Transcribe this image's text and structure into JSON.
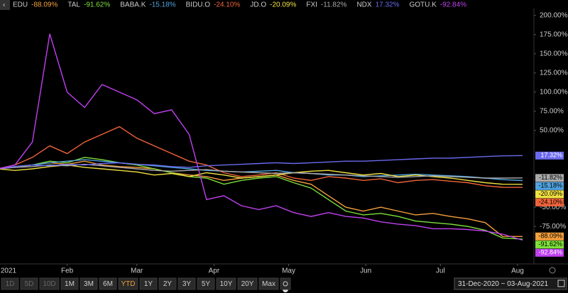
{
  "chart_data": {
    "type": "line",
    "x": [
      4,
      11,
      18,
      25,
      32,
      39,
      46,
      53,
      60,
      67,
      74,
      81,
      88,
      95,
      102,
      109,
      116,
      123,
      130,
      137,
      144,
      151,
      158,
      165,
      172,
      179,
      186,
      193,
      200,
      207,
      215
    ],
    "xlim": [
      5,
      219
    ],
    "xticks": [
      {
        "value": 1,
        "label": "2021"
      },
      {
        "value": 32,
        "label": "Feb"
      },
      {
        "value": 60,
        "label": "Mar"
      },
      {
        "value": 91,
        "label": "Apr"
      },
      {
        "value": 121,
        "label": "May"
      },
      {
        "value": 152,
        "label": "Jun"
      },
      {
        "value": 182,
        "label": "Jul"
      },
      {
        "value": 213,
        "label": "Aug"
      }
    ],
    "ylim": [
      -122,
      209
    ],
    "yticks": [
      {
        "value": 200,
        "label": "200.00%"
      },
      {
        "value": 175,
        "label": "175.00%"
      },
      {
        "value": 150,
        "label": "150.00%"
      },
      {
        "value": 125,
        "label": "125.00%"
      },
      {
        "value": 100,
        "label": "100.00%"
      },
      {
        "value": 75,
        "label": "75.00%"
      },
      {
        "value": 50,
        "label": "50.00%"
      },
      {
        "value": -50,
        "label": "-50.00%"
      },
      {
        "value": -75,
        "label": "-75.00%"
      }
    ],
    "grid": false,
    "legend": "top",
    "series": [
      {
        "name": "EDU",
        "color": "#f5a03c",
        "values": [
          0,
          2,
          5,
          8,
          6,
          10,
          5,
          3,
          2,
          0,
          -5,
          -8,
          -10,
          -15,
          -12,
          -10,
          -8,
          -15,
          -20,
          -35,
          -50,
          -55,
          -50,
          -55,
          -60,
          -58,
          -62,
          -65,
          -70,
          -88,
          -88.09
        ],
        "value_labels": [
          null,
          null,
          null,
          null,
          null,
          null,
          null,
          null,
          null,
          null,
          null,
          null,
          null,
          null,
          null,
          null,
          null,
          null,
          null,
          null,
          null,
          null,
          null,
          null,
          null,
          null,
          null,
          null,
          null,
          null,
          "-88.09%"
        ]
      },
      {
        "name": "TAL",
        "color": "#7de03a",
        "values": [
          0,
          3,
          5,
          10,
          8,
          15,
          12,
          8,
          5,
          0,
          -5,
          -10,
          -12,
          -20,
          -15,
          -12,
          -10,
          -18,
          -25,
          -40,
          -55,
          -60,
          -58,
          -62,
          -68,
          -70,
          -72,
          -75,
          -80,
          -90,
          -91.62
        ],
        "value_labels": [
          null,
          null,
          null,
          null,
          null,
          null,
          null,
          null,
          null,
          null,
          null,
          null,
          null,
          null,
          null,
          null,
          null,
          null,
          null,
          null,
          null,
          null,
          null,
          null,
          null,
          null,
          null,
          null,
          null,
          null,
          "-91.62%"
        ]
      },
      {
        "name": "BABA.K",
        "color": "#4fa3e0",
        "values": [
          0,
          3,
          5,
          8,
          10,
          12,
          10,
          8,
          6,
          4,
          2,
          0,
          -2,
          -3,
          -4,
          -3,
          -2,
          -5,
          -6,
          -8,
          -8,
          -10,
          -9,
          -8,
          -7,
          -8,
          -9,
          -10,
          -12,
          -14,
          -15.18
        ],
        "value_labels": [
          null,
          null,
          null,
          null,
          null,
          null,
          null,
          null,
          null,
          null,
          null,
          null,
          null,
          null,
          null,
          null,
          null,
          null,
          null,
          null,
          null,
          null,
          null,
          null,
          null,
          null,
          null,
          null,
          null,
          null,
          "-15.18%"
        ]
      },
      {
        "name": "BIDU.O",
        "color": "#f0643a",
        "values": [
          0,
          5,
          15,
          30,
          20,
          35,
          45,
          55,
          40,
          30,
          20,
          10,
          5,
          -5,
          -10,
          -8,
          -5,
          -12,
          -15,
          -10,
          -12,
          -15,
          -13,
          -18,
          -15,
          -14,
          -16,
          -18,
          -22,
          -24,
          -24.1
        ],
        "value_labels": [
          null,
          null,
          null,
          null,
          null,
          null,
          null,
          null,
          null,
          null,
          null,
          null,
          null,
          null,
          null,
          null,
          null,
          null,
          null,
          null,
          null,
          null,
          null,
          null,
          null,
          null,
          null,
          null,
          null,
          null,
          "-24.10%"
        ]
      },
      {
        "name": "JD.O",
        "color": "#f0e040",
        "values": [
          0,
          -2,
          0,
          3,
          5,
          2,
          0,
          -2,
          -4,
          -8,
          -6,
          -10,
          -5,
          -8,
          -12,
          -10,
          -8,
          -5,
          -3,
          -2,
          -5,
          -8,
          -6,
          -10,
          -8,
          -10,
          -12,
          -15,
          -18,
          -20,
          -20.09
        ],
        "value_labels": [
          null,
          null,
          null,
          null,
          null,
          null,
          null,
          null,
          null,
          null,
          null,
          null,
          null,
          null,
          null,
          null,
          null,
          null,
          null,
          null,
          null,
          null,
          null,
          null,
          null,
          null,
          null,
          null,
          null,
          null,
          "-20.09%"
        ]
      },
      {
        "name": "FXI",
        "color": "#aaaaaa",
        "values": [
          0,
          2,
          3,
          5,
          4,
          6,
          4,
          2,
          0,
          -2,
          -3,
          -2,
          -1,
          -3,
          -4,
          -5,
          -6,
          -5,
          -6,
          -7,
          -8,
          -9,
          -10,
          -11,
          -10,
          -9,
          -10,
          -11,
          -12,
          -12,
          -11.82
        ],
        "value_labels": [
          null,
          null,
          null,
          null,
          null,
          null,
          null,
          null,
          null,
          null,
          null,
          null,
          null,
          null,
          null,
          null,
          null,
          null,
          null,
          null,
          null,
          null,
          null,
          null,
          null,
          null,
          null,
          null,
          null,
          null,
          "-11.82%"
        ]
      },
      {
        "name": "NDX",
        "color": "#6a6af0",
        "values": [
          0,
          3,
          5,
          4,
          6,
          5,
          7,
          8,
          6,
          5,
          3,
          2,
          4,
          5,
          6,
          7,
          8,
          7,
          8,
          9,
          10,
          10,
          11,
          12,
          13,
          14,
          14,
          15,
          16,
          17,
          17.32
        ],
        "value_labels": [
          null,
          null,
          null,
          null,
          null,
          null,
          null,
          null,
          null,
          null,
          null,
          null,
          null,
          null,
          null,
          null,
          null,
          null,
          null,
          null,
          null,
          null,
          null,
          null,
          null,
          null,
          null,
          null,
          null,
          null,
          "17.32%"
        ]
      },
      {
        "name": "GOTU.K",
        "color": "#c040f0",
        "values": [
          0,
          5,
          35,
          176,
          100,
          80,
          110,
          100,
          90,
          72,
          77,
          45,
          -40,
          -35,
          -48,
          -53,
          -48,
          -57,
          -62,
          -57,
          -62,
          -64,
          -69,
          -72,
          -74,
          -78,
          -78,
          -79,
          -81,
          -85,
          -92.84
        ],
        "value_labels": [
          null,
          null,
          null,
          null,
          null,
          null,
          null,
          null,
          null,
          null,
          null,
          null,
          null,
          null,
          null,
          null,
          null,
          null,
          null,
          null,
          null,
          null,
          null,
          null,
          null,
          null,
          null,
          null,
          null,
          null,
          "-92.84%"
        ]
      }
    ]
  },
  "toolbar": {
    "ranges": [
      "1D",
      "5D",
      "10D",
      "1M",
      "3M",
      "6M",
      "YTD",
      "1Y",
      "2Y",
      "3Y",
      "5Y",
      "10Y",
      "20Y",
      "Max"
    ],
    "active": "YTD",
    "date_range": "31-Dec-2020 ~ 03-Aug-2021"
  }
}
